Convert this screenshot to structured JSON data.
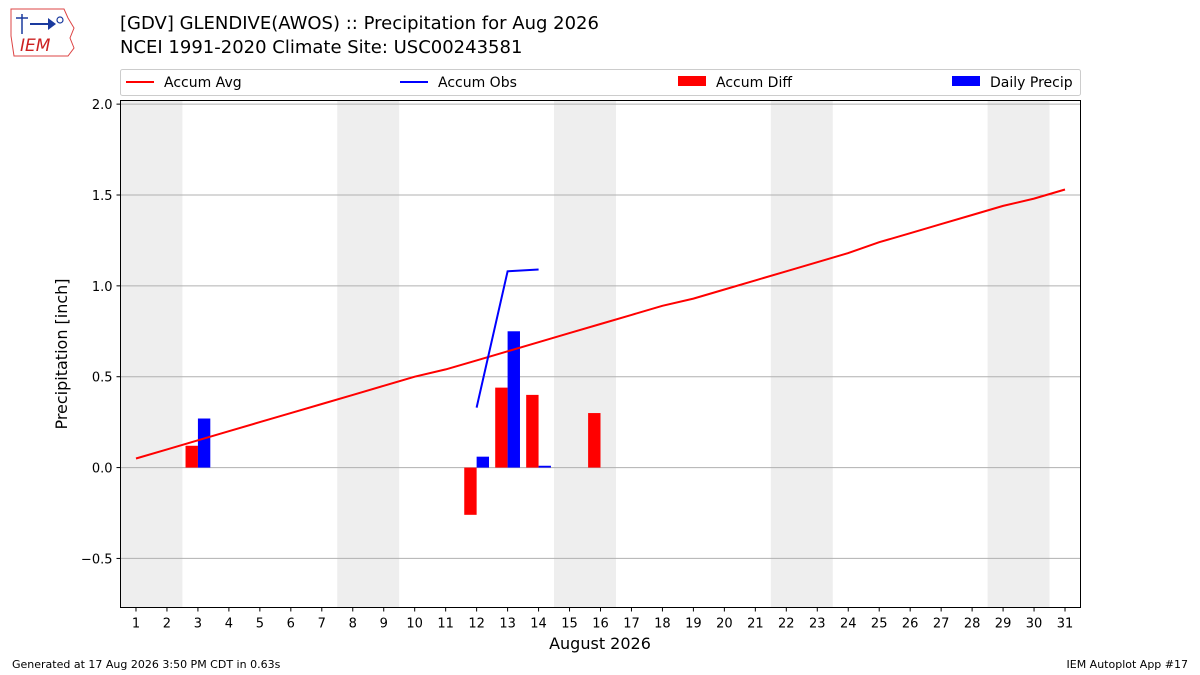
{
  "header": {
    "title_line_1": "[GDV] GLENDIVE(AWOS) :: Precipitation for Aug 2026",
    "title_line_2": "NCEI 1991-2020 Climate Site: USC00243581",
    "logo_text": "IEM"
  },
  "footer": {
    "left": "Generated at 17 Aug 2026 3:50 PM CDT in 0.63s",
    "right": "IEM Autoplot App #17"
  },
  "colors": {
    "accum_avg": "#ff0000",
    "accum_obs": "#0000ff",
    "accum_diff": "#ff0000",
    "daily_precip": "#0000ff",
    "weekend_band": "#eeeeee",
    "grid": "#b0b0b0"
  },
  "chart_data": {
    "type": "bar",
    "xlabel": "August 2026",
    "ylabel": "Precipitation [inch]",
    "ylim": [
      -0.77,
      2.02
    ],
    "xlim": [
      0.5,
      31.5
    ],
    "yticks": [
      -0.5,
      0.0,
      0.5,
      1.0,
      1.5,
      2.0
    ],
    "ytick_labels": [
      "−0.5",
      "0.0",
      "0.5",
      "1.0",
      "1.5",
      "2.0"
    ],
    "days": [
      1,
      2,
      3,
      4,
      5,
      6,
      7,
      8,
      9,
      10,
      11,
      12,
      13,
      14,
      15,
      16,
      17,
      18,
      19,
      20,
      21,
      22,
      23,
      24,
      25,
      26,
      27,
      28,
      29,
      30,
      31
    ],
    "grid": "horizontal",
    "legend_position": "top",
    "legend": [
      {
        "name": "Accum Avg",
        "kind": "line",
        "color": "#ff0000"
      },
      {
        "name": "Accum Obs",
        "kind": "line",
        "color": "#0000ff"
      },
      {
        "name": "Accum Diff",
        "kind": "bar",
        "color": "#ff0000"
      },
      {
        "name": "Daily Precip",
        "kind": "bar",
        "color": "#0000ff"
      }
    ],
    "weekend_bands": [
      [
        1,
        2
      ],
      [
        8,
        9
      ],
      [
        15,
        16
      ],
      [
        22,
        23
      ],
      [
        29,
        30
      ]
    ],
    "accum_avg": {
      "x": [
        1,
        2,
        3,
        4,
        5,
        6,
        7,
        8,
        9,
        10,
        11,
        12,
        13,
        14,
        15,
        16,
        17,
        18,
        19,
        20,
        21,
        22,
        23,
        24,
        25,
        26,
        27,
        28,
        29,
        30,
        31
      ],
      "y": [
        0.05,
        0.1,
        0.15,
        0.2,
        0.25,
        0.3,
        0.35,
        0.4,
        0.45,
        0.5,
        0.54,
        0.59,
        0.64,
        0.69,
        0.74,
        0.79,
        0.84,
        0.89,
        0.93,
        0.98,
        1.03,
        1.08,
        1.13,
        1.18,
        1.24,
        1.29,
        1.34,
        1.39,
        1.44,
        1.48,
        1.53
      ]
    },
    "accum_obs": {
      "x": [
        12,
        13,
        14
      ],
      "y": [
        0.33,
        1.08,
        1.09
      ]
    },
    "accum_diff": {
      "x": [
        3,
        12,
        13,
        14,
        16
      ],
      "y": [
        0.12,
        -0.26,
        0.44,
        0.4,
        0.3
      ]
    },
    "daily_precip": {
      "x": [
        3,
        12,
        13,
        14
      ],
      "y": [
        0.27,
        0.06,
        0.75,
        0.01
      ]
    }
  }
}
